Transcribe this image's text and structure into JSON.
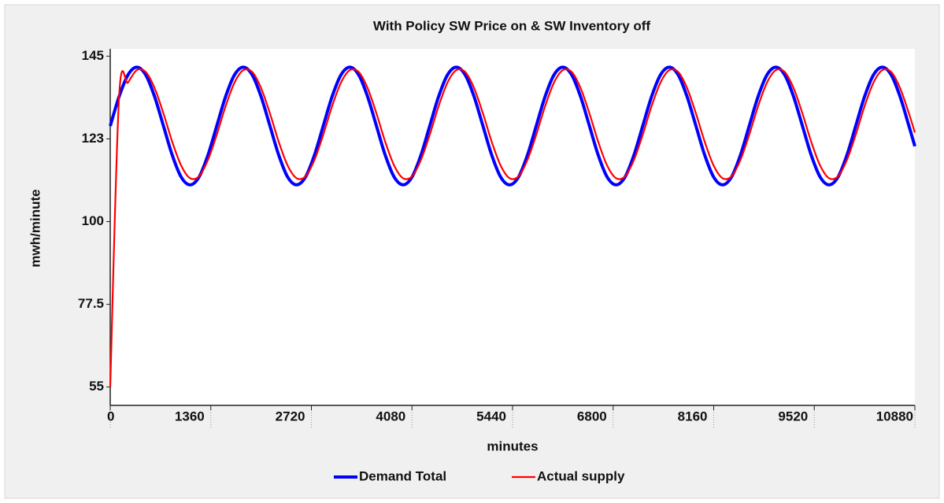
{
  "chart_data": {
    "type": "line",
    "title": "With Policy SW Price on & SW Inventory off",
    "xlabel": "minutes",
    "ylabel": "mwh/minute",
    "x": [
      0,
      120,
      240,
      360,
      480,
      600,
      720,
      840,
      960,
      1080,
      1200,
      1320,
      1440,
      1560,
      1680,
      1800,
      1920,
      2040,
      2160,
      2280,
      2400,
      2520,
      2640,
      2760,
      2880,
      3000,
      3120,
      3240,
      3360,
      3480,
      3600,
      3720,
      3840,
      3960,
      4080,
      4200,
      4320,
      4440,
      4560,
      4680,
      4800,
      4920,
      5040,
      5160,
      5280,
      5400,
      5520,
      5640,
      5760,
      5880,
      6000,
      6120,
      6240,
      6360,
      6480,
      6600,
      6720,
      6840,
      6960,
      7080,
      7200,
      7320,
      7440,
      7560,
      7680,
      7800,
      7920,
      8040,
      8160,
      8280,
      8400,
      8520,
      8640,
      8760,
      8880,
      9000,
      9120,
      9240,
      9360,
      9480,
      9600,
      9720,
      9840,
      9960,
      10080,
      10200,
      10320,
      10440,
      10560,
      10680,
      10800,
      10880
    ],
    "series": [
      {
        "name": "Demand Total",
        "color": "#0000ff",
        "values": [
          126,
          134,
          139.9,
          142,
          139.9,
          134,
          126,
          118,
          112.1,
          110,
          112.1,
          118,
          126,
          134,
          139.9,
          142,
          139.9,
          134,
          126,
          118,
          112.1,
          110,
          112.1,
          118,
          126,
          134,
          139.9,
          142,
          139.9,
          134,
          126,
          118,
          112.1,
          110,
          112.1,
          118,
          126,
          134,
          139.9,
          142,
          139.9,
          134,
          126,
          118,
          112.1,
          110,
          112.1,
          118,
          126,
          134,
          139.9,
          142,
          139.9,
          134,
          126,
          118,
          112.1,
          110,
          112.1,
          118,
          126,
          134,
          139.9,
          142,
          139.9,
          134,
          126,
          118,
          112.1,
          110,
          112.1,
          118,
          126,
          134,
          139.9,
          142,
          139.9,
          134,
          126,
          118,
          112.1,
          110,
          112.1,
          118,
          126,
          134,
          139.9,
          142,
          139.9,
          134,
          126,
          120.5
        ]
      },
      {
        "name": "Actual supply",
        "color": "#ff0000",
        "values": [
          55,
          134,
          137.8,
          141.2,
          140.7,
          136.3,
          129.4,
          121.6,
          115.2,
          111.8,
          112.3,
          116.7,
          123.6,
          131.4,
          137.8,
          141.2,
          140.7,
          136.3,
          129.4,
          121.6,
          115.2,
          111.8,
          112.3,
          116.7,
          123.6,
          131.4,
          137.8,
          141.2,
          140.7,
          136.3,
          129.4,
          121.6,
          115.2,
          111.8,
          112.3,
          116.7,
          123.6,
          131.4,
          137.8,
          141.2,
          140.7,
          136.3,
          129.4,
          121.6,
          115.2,
          111.8,
          112.3,
          116.7,
          123.6,
          131.4,
          137.8,
          141.2,
          140.7,
          136.3,
          129.4,
          121.6,
          115.2,
          111.8,
          112.3,
          116.7,
          123.6,
          131.4,
          137.8,
          141.2,
          140.7,
          136.3,
          129.4,
          121.6,
          115.2,
          111.8,
          112.3,
          116.7,
          123.6,
          131.4,
          137.8,
          141.2,
          140.7,
          136.3,
          129.4,
          121.6,
          115.2,
          111.8,
          112.3,
          116.7,
          123.6,
          131.4,
          137.8,
          141.2,
          140.7,
          136.3,
          129.4,
          124.2
        ]
      }
    ],
    "xlim": [
      0,
      10880
    ],
    "xticks": [
      0,
      1360,
      2720,
      4080,
      5440,
      6800,
      8160,
      9520,
      10880
    ],
    "ylim": [
      50,
      147
    ],
    "yticks": [
      55,
      77.5,
      100,
      {
        "value": 122.5,
        "label": "123"
      },
      145
    ],
    "grid": false,
    "legend": "bottom"
  }
}
